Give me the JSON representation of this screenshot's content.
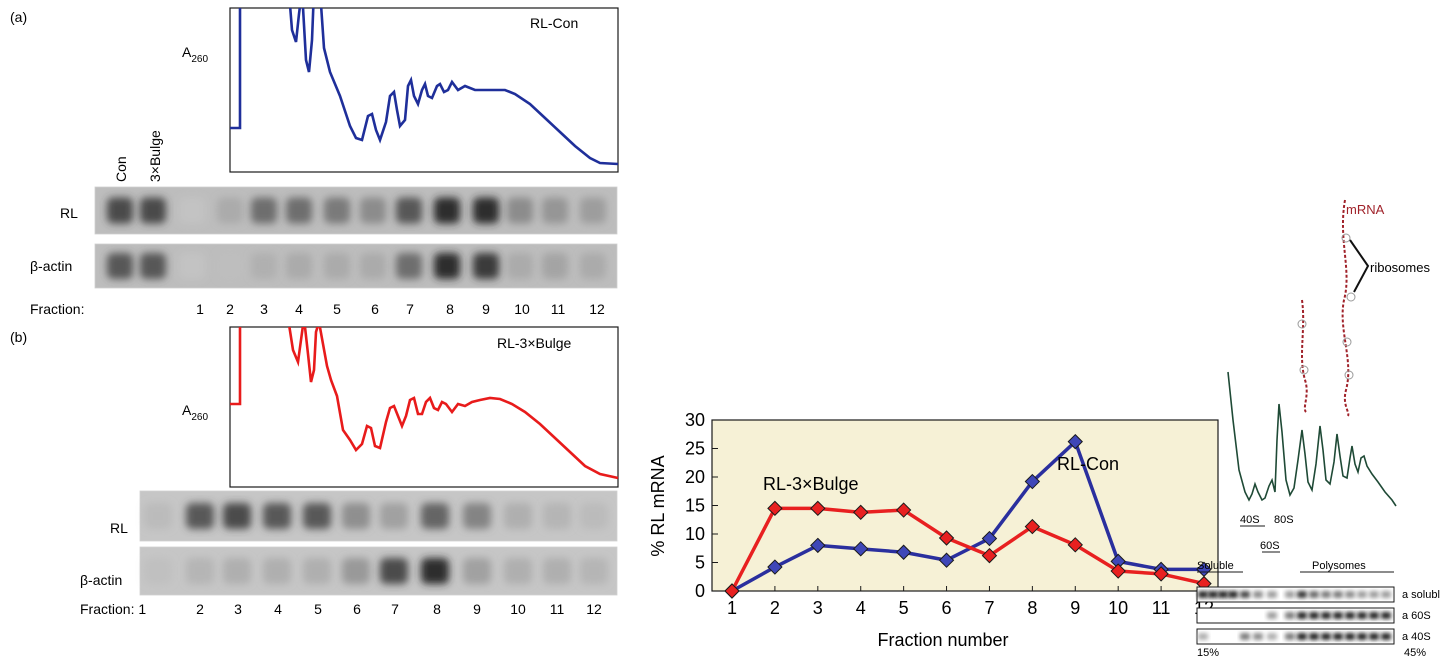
{
  "panel_a": {
    "label": "(a)",
    "trace_label": "RL-Con",
    "y_label_main": "A",
    "y_label_sub": "260",
    "lane_labels": [
      "Con",
      "3×Bulge"
    ],
    "blot_labels": [
      "RL",
      "β-actin"
    ],
    "fraction_label": "Fraction:",
    "fractions": [
      "1",
      "2",
      "3",
      "4",
      "5",
      "6",
      "7",
      "8",
      "9",
      "10",
      "11",
      "12"
    ],
    "trace_color": "#1f2f9a",
    "rl_band_intensity": [
      0.85,
      0.85,
      0.05,
      0.35,
      0.7,
      0.7,
      0.65,
      0.55,
      0.8,
      0.95,
      0.95,
      0.55,
      0.5,
      0.45
    ],
    "actin_band_intensity": [
      0.8,
      0.8,
      0.05,
      0.15,
      0.3,
      0.35,
      0.35,
      0.35,
      0.7,
      0.95,
      0.9,
      0.35,
      0.4,
      0.35
    ]
  },
  "panel_b": {
    "label": "(b)",
    "trace_label": "RL-3×Bulge",
    "y_label_main": "A",
    "y_label_sub": "260",
    "blot_labels": [
      "RL",
      "β-actin"
    ],
    "fraction_label": "Fraction: 1",
    "fractions": [
      "2",
      "3",
      "4",
      "5",
      "6",
      "7",
      "8",
      "9",
      "10",
      "11",
      "12"
    ],
    "trace_color": "#e81b1b",
    "rl_band_intensity": [
      0.25,
      0.8,
      0.85,
      0.8,
      0.8,
      0.55,
      0.45,
      0.75,
      0.6,
      0.35,
      0.3,
      0.25
    ],
    "actin_band_intensity": [
      0.2,
      0.3,
      0.35,
      0.35,
      0.35,
      0.5,
      0.85,
      0.95,
      0.45,
      0.35,
      0.35,
      0.3
    ]
  },
  "chart_data": {
    "type": "line",
    "title": "",
    "xlabel": "Fraction number",
    "ylabel": "% RL mRNA",
    "x": [
      1,
      2,
      3,
      4,
      5,
      6,
      7,
      8,
      9,
      10,
      11,
      12
    ],
    "ylim": [
      0,
      30
    ],
    "yticks": [
      0,
      5,
      10,
      15,
      20,
      25,
      30
    ],
    "grid": false,
    "background": "#f6f1d6",
    "series": [
      {
        "name": "RL-Con",
        "color": "#2a2f9e",
        "marker_color": "#3f47b8",
        "values": [
          0,
          4.2,
          8,
          7.4,
          6.8,
          5.4,
          9.2,
          19.2,
          26.2,
          5.2,
          3.8,
          3.8
        ]
      },
      {
        "name": "RL-3×Bulge",
        "color": "#e82020",
        "marker_color": "#e82020",
        "values": [
          0,
          14.5,
          14.5,
          13.8,
          14.2,
          9.3,
          6.2,
          11.3,
          8.1,
          3.5,
          3.0,
          1.3
        ]
      }
    ]
  },
  "schematic": {
    "mrna_label": "mRNA",
    "ribosomes_label": "ribosomes",
    "peak_labels": [
      "40S",
      "80S",
      "60S"
    ],
    "soluble_label": "Soluble",
    "polysomes_label": "Polysomes",
    "row_labels": [
      "a soluble",
      "a 60S",
      "a 40S"
    ],
    "gradient_start": "15%",
    "gradient_end": "45%",
    "trace_color": "#1f4a36",
    "mrna_color": "#a0222a"
  }
}
